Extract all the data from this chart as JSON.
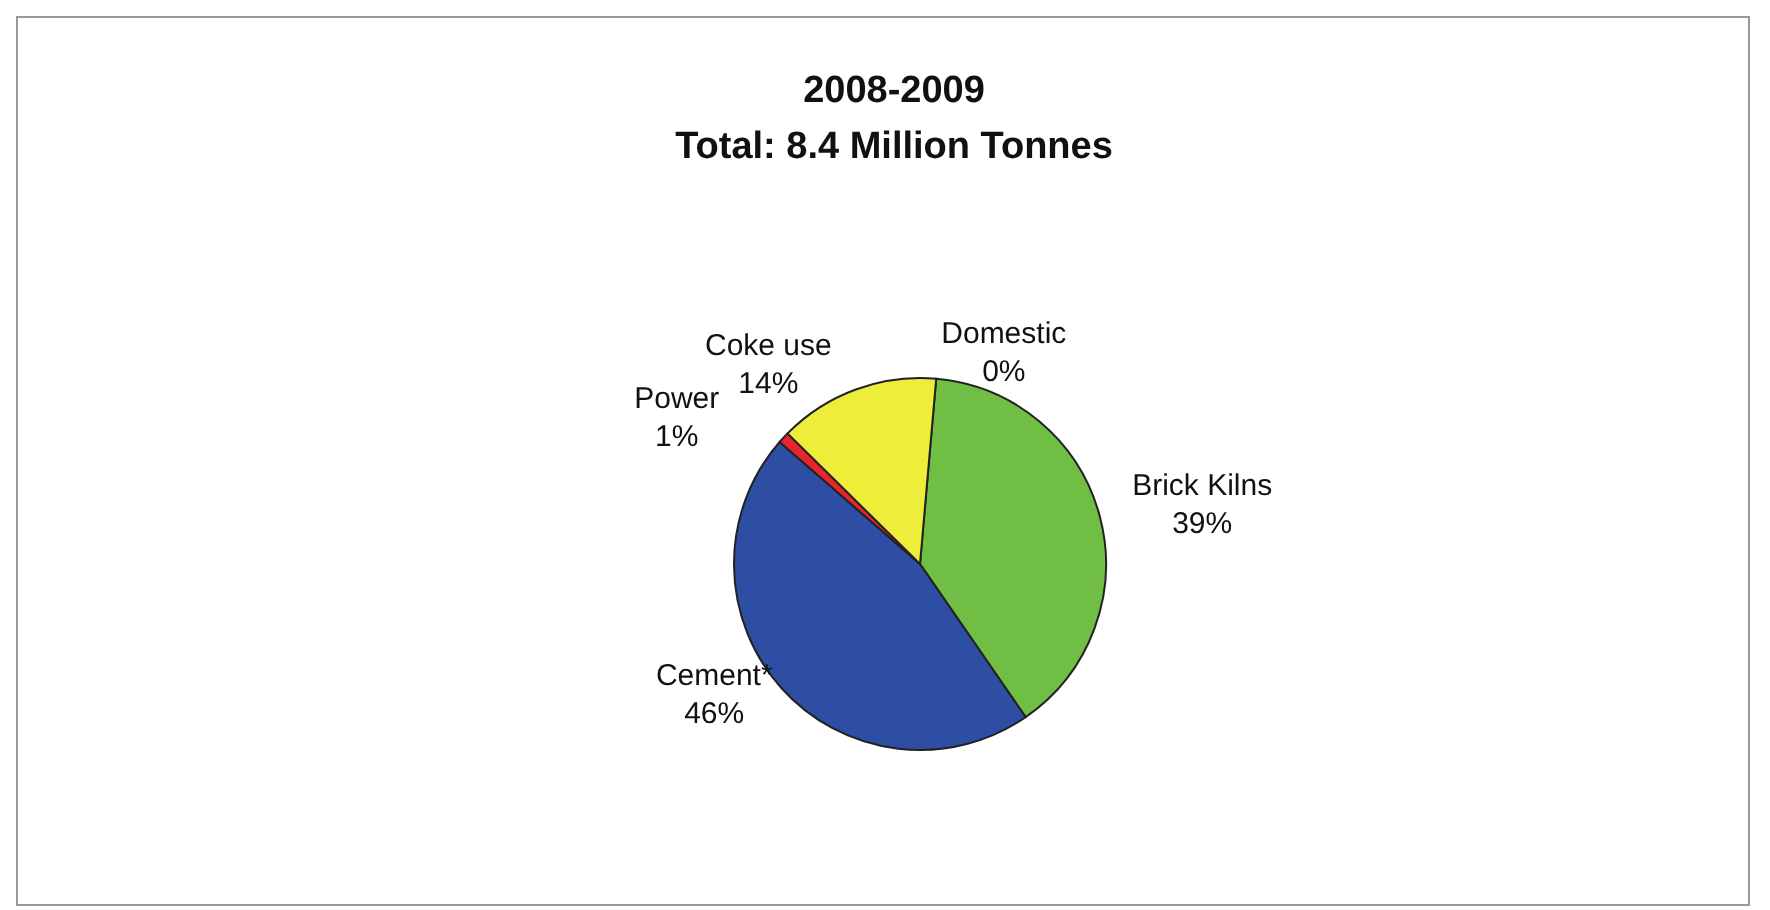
{
  "chart_data": {
    "type": "pie",
    "title": "2008-2009",
    "subtitle": "Total: 8.4 Million Tonnes",
    "categories": [
      "Domestic",
      "Brick Kilns",
      "Cement*",
      "Power",
      "Coke use"
    ],
    "values": [
      0,
      39,
      46,
      1,
      14
    ],
    "value_labels": [
      "0%",
      "39%",
      "46%",
      "1%",
      "14%"
    ],
    "colors": [
      "#5a3a1a",
      "#70bf44",
      "#2e4ea3",
      "#e8262a",
      "#eeee3a"
    ],
    "legend": false
  }
}
